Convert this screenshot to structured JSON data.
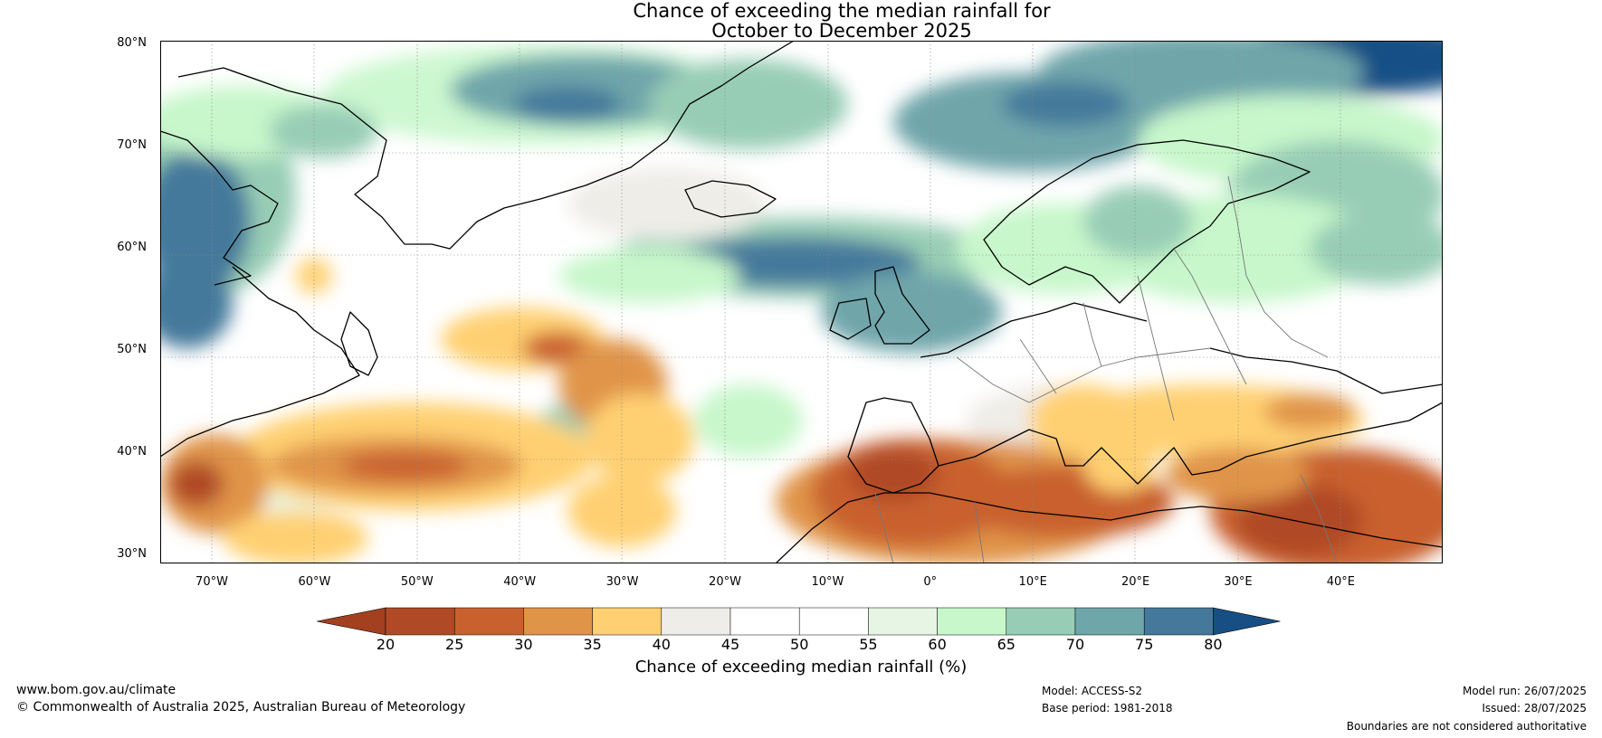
{
  "title": {
    "line1": "Chance of exceeding the median rainfall for",
    "line2": "October to December 2025"
  },
  "map": {
    "lat_labels": [
      "80°N",
      "70°N",
      "60°N",
      "50°N",
      "40°N",
      "30°N"
    ],
    "lon_labels": [
      "70°W",
      "60°W",
      "50°W",
      "40°W",
      "30°W",
      "20°W",
      "10°W",
      "0°",
      "10°E",
      "20°E",
      "30°E",
      "40°E"
    ]
  },
  "colorbar": {
    "ticks": [
      "20",
      "25",
      "30",
      "35",
      "40",
      "45",
      "50",
      "55",
      "60",
      "65",
      "70",
      "75",
      "80"
    ],
    "colors": [
      "#a3401f",
      "#b04a26",
      "#c9612e",
      "#e09448",
      "#ffd072",
      "#efede8",
      "#ffffff",
      "#ffffff",
      "#e7f6e4",
      "#c7f7cb",
      "#98cdb5",
      "#6fa6aa",
      "#45799b",
      "#174f85"
    ],
    "label": "Chance of exceeding median rainfall (%)"
  },
  "footer": {
    "url": "www.bom.gov.au/climate",
    "copyright": "© Commonwealth of Australia 2025, Australian Bureau of Meteorology",
    "model": "Model: ACCESS-S2",
    "base_period": "Base period: 1981-2018",
    "model_run": "Model run: 26/07/2025",
    "issued": "Issued: 28/07/2025",
    "disclaimer": "Boundaries are not considered authoritative"
  }
}
